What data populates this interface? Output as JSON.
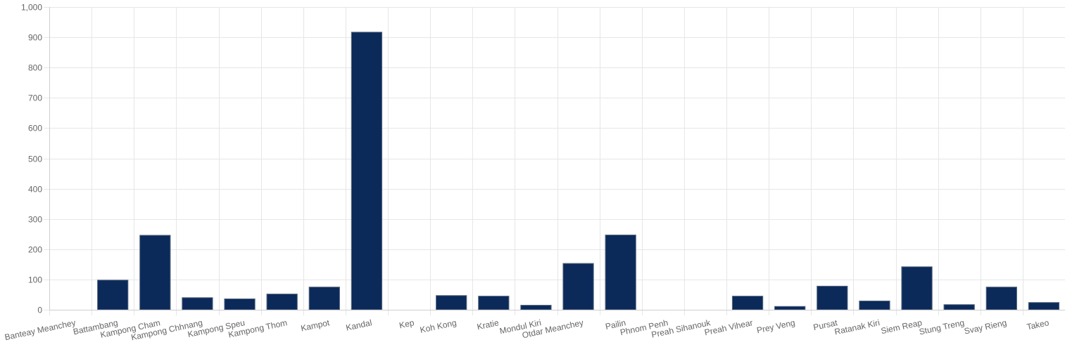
{
  "chart_data": {
    "type": "bar",
    "categories": [
      "Banteay Meanchey",
      "Battambang",
      "Kampong Cham",
      "Kampong Chhnang",
      "Kampong Speu",
      "Kampong Thom",
      "Kampot",
      "Kandal",
      "Kep",
      "Koh Kong",
      "Kratie",
      "Mondul Kiri",
      "Otdar Meanchey",
      "Pailin",
      "Phnom Penh",
      "Preah Sihanouk",
      "Preah Vihear",
      "Prey Veng",
      "Pursat",
      "Ratanak Kiri",
      "Siem Reap",
      "Stung Treng",
      "Svay Rieng",
      "Takeo"
    ],
    "values": [
      0,
      98,
      246,
      40,
      36,
      52,
      75,
      917,
      0,
      47,
      45,
      15,
      153,
      247,
      0,
      0,
      45,
      11,
      78,
      29,
      142,
      17,
      75,
      24
    ],
    "ylim": [
      0,
      1000
    ],
    "yticks": [
      0,
      100,
      200,
      300,
      400,
      500,
      600,
      700,
      800,
      900,
      1000
    ],
    "ytick_labels": [
      "0",
      "100",
      "200",
      "300",
      "400",
      "500",
      "600",
      "700",
      "800",
      "900",
      "1,000"
    ],
    "grid": true,
    "legend": "none",
    "bar_color": "#0b2a5a"
  }
}
